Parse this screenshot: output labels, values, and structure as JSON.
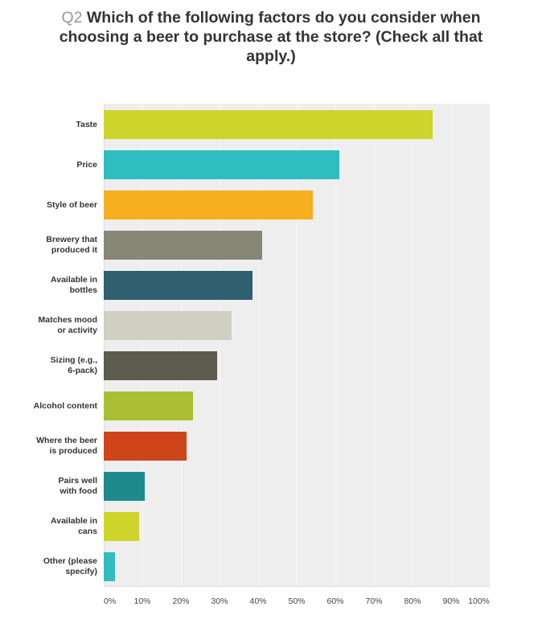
{
  "title": {
    "question_number": "Q2",
    "text": "Which of the following factors do you consider when choosing a beer to purchase at the store? (Check all that apply.)"
  },
  "chart_data": {
    "type": "bar",
    "orientation": "horizontal",
    "title": "Q2 Which of the following factors do you consider when choosing a beer to purchase at the store? (Check all that apply.)",
    "xlabel": "",
    "ylabel": "",
    "xlim": [
      0,
      100
    ],
    "x_ticks": [
      "0%",
      "10%",
      "20%",
      "30%",
      "40%",
      "50%",
      "60%",
      "70%",
      "80%",
      "90%",
      "100%"
    ],
    "grid": true,
    "legend": null,
    "categories": [
      "Taste",
      "Price",
      "Style of beer",
      "Brewery that produced it",
      "Available in bottles",
      "Matches mood or activity",
      "Sizing (e.g., 6-pack)",
      "Alcohol content",
      "Where the beer is produced",
      "Pairs well with food",
      "Available in cans",
      "Other (please specify)"
    ],
    "values": [
      85.1,
      61.1,
      54.2,
      41.0,
      38.6,
      33.2,
      29.3,
      23.1,
      21.5,
      10.7,
      9.2,
      3.0
    ],
    "unit": "%",
    "colors": [
      "#cdd52a",
      "#2fbdc0",
      "#f7ae1f",
      "#888777",
      "#305f70",
      "#d0cfc2",
      "#5c5b4d",
      "#a9be33",
      "#cd4519",
      "#1e8a8c",
      "#cdd52a",
      "#2fbdc0"
    ]
  },
  "labels_display": [
    "Taste",
    "Price",
    "Style of beer",
    "Brewery that\nproduced it",
    "Available in\nbottles",
    "Matches mood\nor activity",
    "Sizing (e.g.,\n6-pack)",
    "Alcohol content",
    "Where the beer\nis produced",
    "Pairs well\nwith food",
    "Available in\ncans",
    "Other (please\nspecify)"
  ],
  "colors": {
    "plot_background": "#eeeeee",
    "gridline": "#f7f7f7",
    "title_text": "#333333",
    "question_number": "#999999"
  }
}
